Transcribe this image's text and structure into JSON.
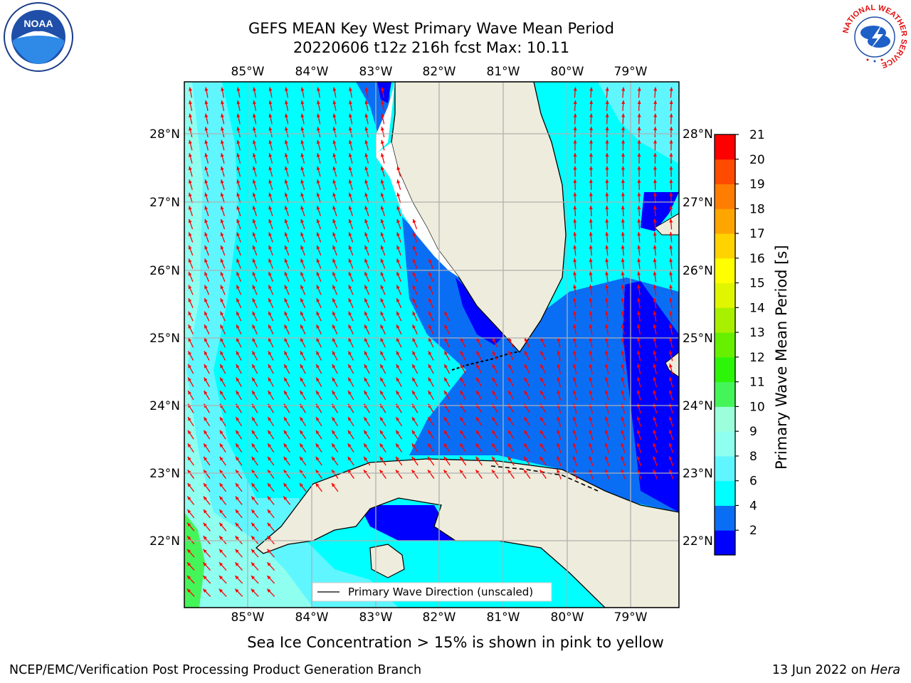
{
  "header": {
    "title_line1": "GEFS MEAN Key West Primary Wave Mean Period",
    "title_line2": "20220606 t12z 216h fcst   Max: 10.11"
  },
  "logos": {
    "noaa_icon": "noaa-logo-icon",
    "nws_icon": "nws-logo-icon",
    "noaa_text": "NOAA",
    "nws_ring_text": "NATIONAL WEATHER SERVICE"
  },
  "map": {
    "lon_ticks": [
      "85°W",
      "84°W",
      "83°W",
      "82°W",
      "81°W",
      "80°W",
      "79°W"
    ],
    "lat_ticks": [
      "28°N",
      "27°N",
      "26°N",
      "25°N",
      "24°N",
      "23°N",
      "22°N"
    ],
    "legend_label": "Primary Wave Direction (unscaled)",
    "arrow_color": "#ff0000",
    "land_color": "#eeecdc",
    "grid_color": "#b0b0b0"
  },
  "colorbar": {
    "label": "Primary Wave Mean Period [s]",
    "tick_labels": [
      "21",
      "20",
      "19",
      "18",
      "17",
      "16",
      "15",
      "14",
      "13",
      "12",
      "11",
      "10",
      "9",
      "8",
      "6",
      "4",
      "2"
    ],
    "colors": [
      "#0000ff",
      "#0a6ef5",
      "#00ffff",
      "#5ff6ff",
      "#8ffff0",
      "#9bffdc",
      "#44f55a",
      "#2cf50a",
      "#66f000",
      "#a8f000",
      "#e0f500",
      "#ffff00",
      "#ffd200",
      "#ffa500",
      "#ff7d00",
      "#ff4b00",
      "#ff0000"
    ]
  },
  "footnote": "Sea Ice Concentration > 15% is shown in pink to yellow",
  "footer": {
    "left": "NCEP/EMC/Verification Post Processing Product Generation Branch",
    "right_date": "13 Jun 2022 on",
    "right_host": "Hera"
  }
}
